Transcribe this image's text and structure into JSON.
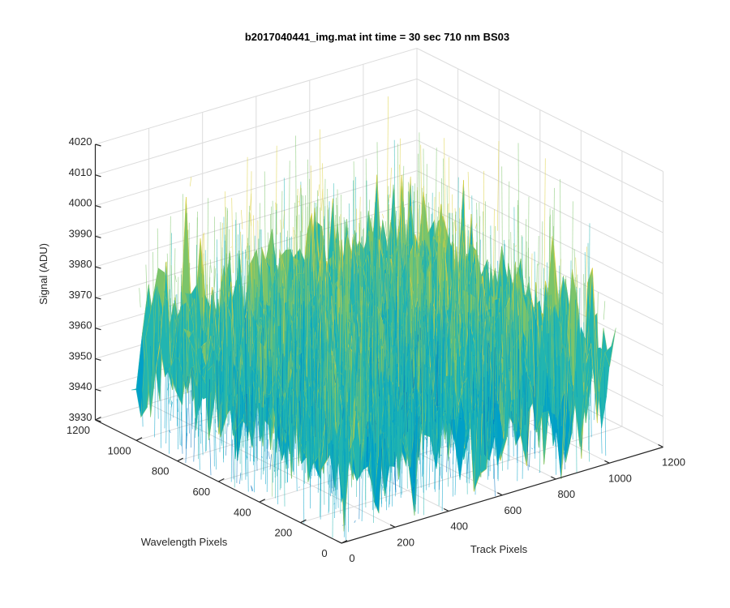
{
  "chart_data": {
    "type": "surface",
    "title": "b2017040441_img.mat int time = 30 sec  710 nm BS03",
    "xlabel": "Track Pixels",
    "ylabel": "Wavelength Pixels",
    "zlabel": "Signal (ADU)",
    "xlim": [
      0,
      1200
    ],
    "ylim": [
      0,
      1200
    ],
    "zlim": [
      3930,
      4020
    ],
    "xticks": [
      "0",
      "200",
      "400",
      "600",
      "800",
      "1000",
      "1200"
    ],
    "yticks": [
      "0",
      "200",
      "400",
      "600",
      "800",
      "1000",
      "1200"
    ],
    "zticks": [
      "3930",
      "3940",
      "3950",
      "3960",
      "3970",
      "3980",
      "3990",
      "4000",
      "4010",
      "4020"
    ],
    "data_extent": {
      "x": [
        0,
        1024
      ],
      "y": [
        0,
        1024
      ]
    },
    "signal_mean": 3962,
    "signal_spread": 14,
    "grid": true,
    "colormap": [
      "#0072bd",
      "#00a0c8",
      "#22b5b0",
      "#7cc46a",
      "#ddd040"
    ]
  }
}
